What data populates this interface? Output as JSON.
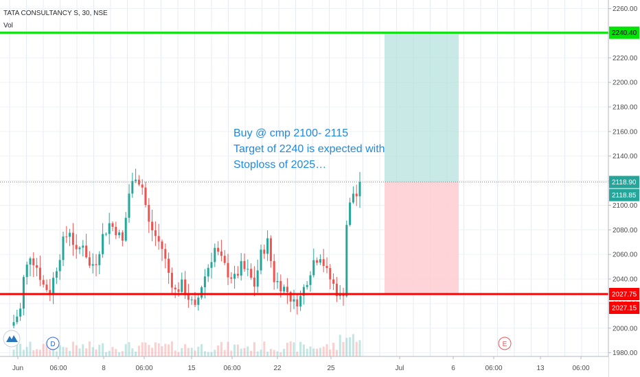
{
  "header": {
    "symbol": "TATA CONSULTANCY S, 30, NSE",
    "volume_label": "Vol"
  },
  "annotation": {
    "lines": [
      "Buy @ cmp 2100- 2115",
      "Target of 2240 is expected with",
      "Stoploss of 2025…"
    ]
  },
  "markers": {
    "dividend": "D",
    "earnings": "E"
  },
  "logo_icon": "tradingview-logo-icon",
  "colors": {
    "up": "#26a69a",
    "down": "#ef5350",
    "target_line": "#00e600",
    "stop_line": "#ff0000",
    "profit_zone": "#b2dfdb",
    "loss_zone": "#ffcdd2",
    "annotation": "#1e88e5",
    "price_badge": "#26a69a"
  },
  "chart_data": {
    "type": "candlestick",
    "symbol": "TATA CONSULTANCY S",
    "interval": "30",
    "exchange": "NSE",
    "x_tick_labels": [
      "Jun",
      "06:00",
      "8",
      "06:00",
      "15",
      "06:00",
      "22",
      "25",
      "Jul",
      "6",
      "06:00",
      "13",
      "06:00"
    ],
    "y_ticks": [
      1980,
      2000,
      2020,
      2040,
      2060,
      2080,
      2100,
      2120,
      2140,
      2160,
      2180,
      2200,
      2220,
      2240,
      2260
    ],
    "y_tick_labels": [
      "1980.00",
      "2000.00",
      "2020.00",
      "2040.00",
      "2060.00",
      "2080.00",
      "2100.00",
      "2120.00",
      "2140.00",
      "2160.00",
      "2180.00",
      "2200.00",
      "2220.00",
      "2240.00",
      "2260.00"
    ],
    "ylim": [
      1977,
      2267
    ],
    "grid": true,
    "horizontal_lines": [
      {
        "name": "target",
        "value": 2240.4,
        "label": "2240.40"
      },
      {
        "name": "stoploss",
        "value": 2027.75,
        "label": "2027.75"
      }
    ],
    "price_labels": [
      {
        "value": 2240.4,
        "label": "2240.40"
      },
      {
        "value": 2118.9,
        "label": "2118.90"
      },
      {
        "value": 2118.85,
        "label": "2118.85"
      },
      {
        "value": 2027.75,
        "label": "2027.75"
      },
      {
        "value": 2027.15,
        "label": "2027.15"
      }
    ],
    "last_price": 2118.9,
    "position": {
      "entry": 2118.9,
      "target": 2240.4,
      "stop": 2027.75
    },
    "waypoints": [
      [
        0,
        2005
      ],
      [
        2,
        2015
      ],
      [
        3,
        2040
      ],
      [
        5,
        2060
      ],
      [
        7,
        2050
      ],
      [
        9,
        2035
      ],
      [
        11,
        2030
      ],
      [
        13,
        2050
      ],
      [
        15,
        2070
      ],
      [
        17,
        2080
      ],
      [
        19,
        2060
      ],
      [
        21,
        2070
      ],
      [
        23,
        2050
      ],
      [
        25,
        2055
      ],
      [
        27,
        2075
      ],
      [
        29,
        2085
      ],
      [
        31,
        2080
      ],
      [
        33,
        2070
      ],
      [
        35,
        2110
      ],
      [
        37,
        2125
      ],
      [
        39,
        2115
      ],
      [
        41,
        2085
      ],
      [
        43,
        2075
      ],
      [
        45,
        2065
      ],
      [
        47,
        2045
      ],
      [
        49,
        2030
      ],
      [
        51,
        2035
      ],
      [
        53,
        2025
      ],
      [
        55,
        2015
      ],
      [
        57,
        2035
      ],
      [
        59,
        2050
      ],
      [
        61,
        2065
      ],
      [
        63,
        2055
      ],
      [
        65,
        2045
      ],
      [
        67,
        2040
      ],
      [
        69,
        2050
      ],
      [
        71,
        2045
      ],
      [
        73,
        2035
      ],
      [
        75,
        2060
      ],
      [
        77,
        2070
      ],
      [
        79,
        2040
      ],
      [
        81,
        2035
      ],
      [
        83,
        2030
      ],
      [
        85,
        2020
      ],
      [
        87,
        2025
      ],
      [
        89,
        2040
      ],
      [
        91,
        2055
      ],
      [
        93,
        2060
      ],
      [
        95,
        2045
      ],
      [
        97,
        2035
      ],
      [
        99,
        2025
      ],
      [
        100,
        2030
      ],
      [
        101,
        2085
      ],
      [
        102,
        2100
      ],
      [
        103,
        2110
      ],
      [
        104,
        2108
      ],
      [
        105,
        2118.9
      ]
    ]
  }
}
